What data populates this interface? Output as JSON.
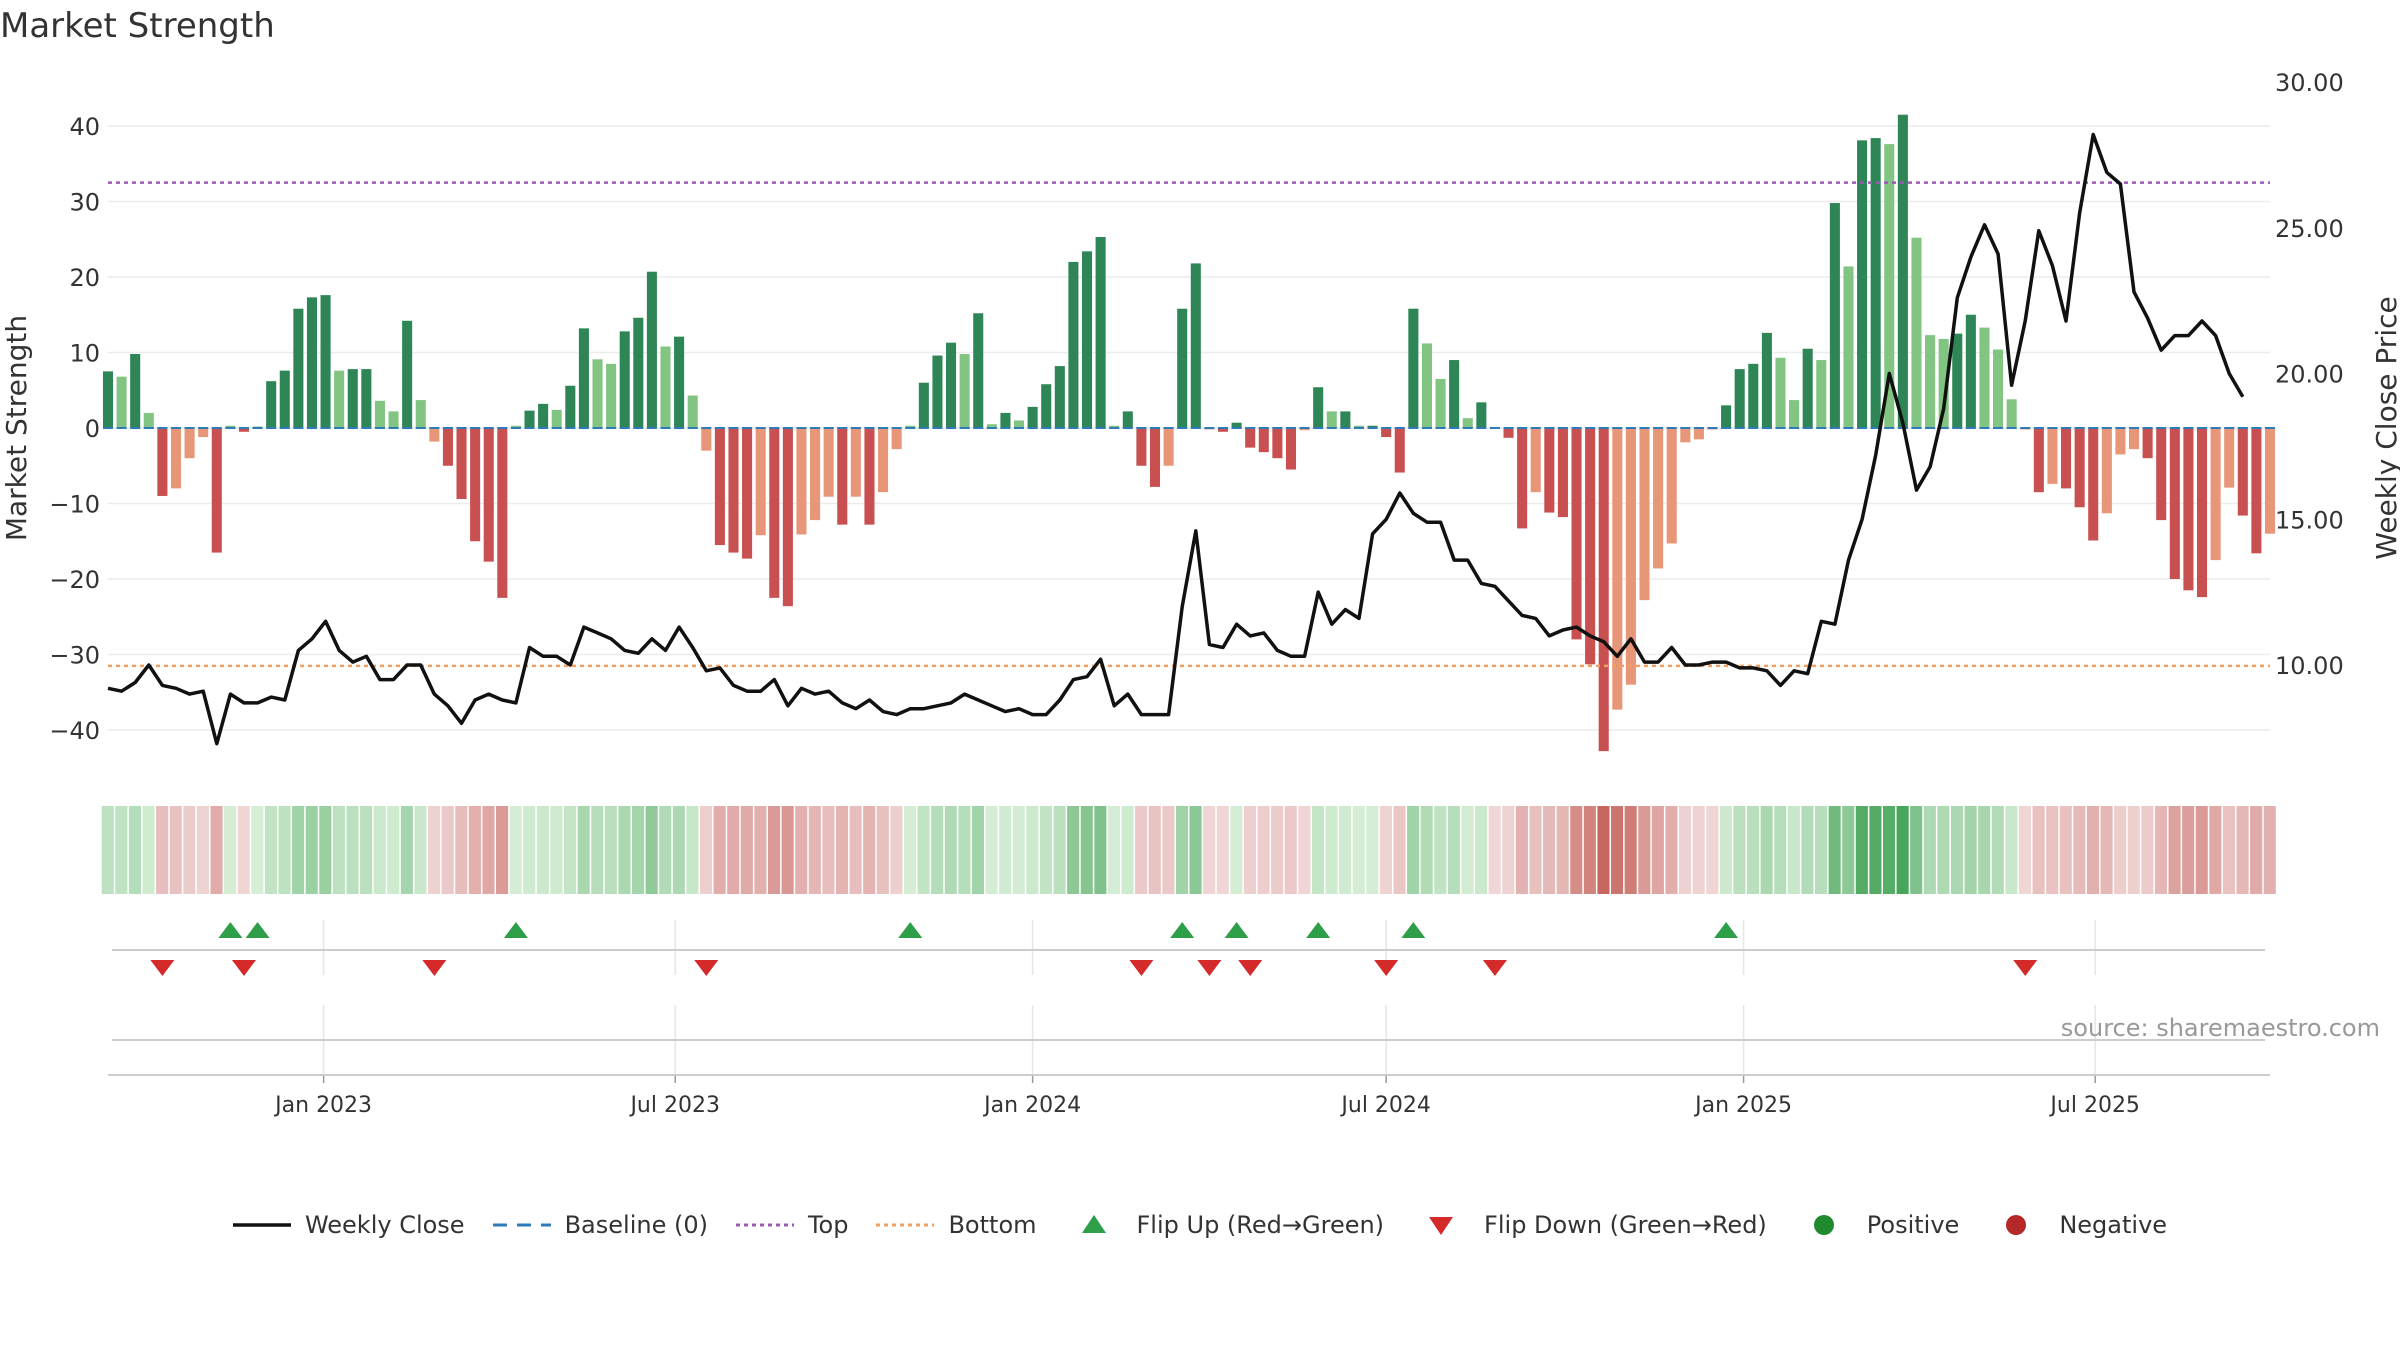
{
  "title": "Market Strength",
  "source_text": "source: sharemaestro.com",
  "legend": [
    {
      "label": "Weekly Close",
      "kind": "line",
      "color": "#111111"
    },
    {
      "label": "Baseline (0)",
      "kind": "dash",
      "color": "#2f7ab8"
    },
    {
      "label": "Top",
      "kind": "dot",
      "color": "#9b59b6"
    },
    {
      "label": "Bottom",
      "kind": "dot",
      "color": "#f0a060"
    },
    {
      "label": "Flip Up (Red→Green)",
      "kind": "tri-up",
      "color": "#2e9e48"
    },
    {
      "label": "Flip Down (Green→Red)",
      "kind": "tri-down",
      "color": "#d42a2a"
    },
    {
      "label": "Positive",
      "kind": "circle",
      "color": "#1f8a2e"
    },
    {
      "label": "Negative",
      "kind": "circle",
      "color": "#b52828"
    }
  ],
  "chart_data": {
    "type": "bar",
    "title": "Market Strength",
    "ylabel": "Market Strength",
    "y2label": "Weekly Close Price",
    "ylim": [
      -46,
      47
    ],
    "y2lim": [
      6.5,
      30.0
    ],
    "yticks": [
      "40",
      "30",
      "20",
      "10",
      "0",
      "−10",
      "−20",
      "−30",
      "−40"
    ],
    "y2ticks": [
      "30.00",
      "25.00",
      "20.00",
      "15.00",
      "10.00"
    ],
    "x_start": "2022-09-12",
    "x_step_days": 7,
    "xticks": [
      {
        "date": "2023-01-01",
        "label": "Jan 2023"
      },
      {
        "date": "2023-07-01",
        "label": "Jul 2023"
      },
      {
        "date": "2024-01-01",
        "label": "Jan 2024"
      },
      {
        "date": "2024-07-01",
        "label": "Jul 2024"
      },
      {
        "date": "2025-01-01",
        "label": "Jan 2025"
      },
      {
        "date": "2025-07-01",
        "label": "Jul 2025"
      }
    ],
    "top_level": 32.5,
    "bottom_level": -31.5,
    "baseline": 0,
    "strength": [
      7.5,
      6.8,
      9.8,
      2.0,
      -9.0,
      -8.0,
      -4.0,
      -1.2,
      -16.5,
      0.3,
      -0.5,
      0.2,
      6.2,
      7.6,
      15.8,
      17.3,
      17.6,
      7.6,
      7.8,
      7.8,
      3.6,
      2.2,
      14.2,
      3.7,
      -1.8,
      -5.0,
      -9.4,
      -15.0,
      -17.7,
      -22.5,
      0.3,
      2.3,
      3.2,
      2.4,
      5.6,
      13.2,
      9.1,
      8.5,
      12.8,
      14.6,
      20.7,
      10.8,
      12.1,
      4.3,
      -3.0,
      -15.5,
      -16.5,
      -17.3,
      -14.2,
      -22.5,
      -23.6,
      -14.1,
      -12.2,
      -9.1,
      -12.8,
      -9.1,
      -12.8,
      -8.5,
      -2.8,
      0.3,
      6.0,
      9.6,
      11.3,
      9.8,
      15.2,
      0.5,
      2.0,
      1.0,
      2.8,
      5.8,
      8.2,
      22.0,
      23.4,
      25.3,
      0.3,
      2.2,
      -5.0,
      -7.8,
      -5.0,
      15.8,
      21.8,
      -0.2,
      -0.5,
      0.7,
      -2.6,
      -3.2,
      -4.0,
      -5.5,
      -0.3,
      5.4,
      2.2,
      2.2,
      0.3,
      0.3,
      -1.2,
      -5.9,
      15.8,
      11.2,
      6.5,
      9.0,
      1.3,
      3.4,
      -0.1,
      -1.3,
      -13.3,
      -8.5,
      -11.2,
      -11.8,
      -28.0,
      -31.3,
      -42.8,
      -37.3,
      -34.0,
      -22.8,
      -18.6,
      -15.3,
      -1.9,
      -1.5,
      -0.2,
      3.0,
      7.8,
      8.5,
      12.6,
      9.3,
      3.7,
      10.5,
      9.0,
      29.8,
      21.4,
      38.1,
      38.4,
      37.6,
      41.5,
      25.2,
      12.3,
      11.8,
      12.5,
      15.0,
      13.3,
      10.4,
      3.8,
      -0.2,
      -8.5,
      -7.4,
      -8.0,
      -10.5,
      -14.9,
      -11.3,
      -3.5,
      -2.8,
      -4.0,
      -12.2,
      -20.0,
      -21.5,
      -22.4,
      -17.5,
      -7.9,
      -11.6,
      -16.6,
      -14.0
    ],
    "weekly_close": [
      9.2,
      9.1,
      9.4,
      10.0,
      9.3,
      9.2,
      9.0,
      9.1,
      7.3,
      9.0,
      8.7,
      8.7,
      8.9,
      8.8,
      10.5,
      10.9,
      11.5,
      10.5,
      10.1,
      10.3,
      9.5,
      9.5,
      10.0,
      10.0,
      9.0,
      8.6,
      8.0,
      8.8,
      9.0,
      8.8,
      8.7,
      10.6,
      10.3,
      10.3,
      10.0,
      11.3,
      11.1,
      10.9,
      10.5,
      10.4,
      10.9,
      10.5,
      11.3,
      10.6,
      9.8,
      9.9,
      9.3,
      9.1,
      9.1,
      9.5,
      8.6,
      9.2,
      9.0,
      9.1,
      8.7,
      8.5,
      8.8,
      8.4,
      8.3,
      8.5,
      8.5,
      8.6,
      8.7,
      9.0,
      8.8,
      8.6,
      8.4,
      8.5,
      8.3,
      8.3,
      8.8,
      9.5,
      9.6,
      10.2,
      8.6,
      9.0,
      8.3,
      8.3,
      8.3,
      12.0,
      14.6,
      10.7,
      10.6,
      11.4,
      11.0,
      11.1,
      10.5,
      10.3,
      10.3,
      12.5,
      11.4,
      11.9,
      11.6,
      14.5,
      15.0,
      15.9,
      15.2,
      14.9,
      14.9,
      13.6,
      13.6,
      12.8,
      12.7,
      12.2,
      11.7,
      11.6,
      11.0,
      11.2,
      11.3,
      11.0,
      10.8,
      10.3,
      10.9,
      10.1,
      10.1,
      10.6,
      10.0,
      10.0,
      10.1,
      10.1,
      9.9,
      9.9,
      9.8,
      9.3,
      9.8,
      9.7,
      11.5,
      11.4,
      13.6,
      15.0,
      17.2,
      20.0,
      18.3,
      16.0,
      16.8,
      18.8,
      22.6,
      24.0,
      25.1,
      24.1,
      19.6,
      21.8,
      24.9,
      23.7,
      21.8,
      25.5,
      28.2,
      26.9,
      26.5,
      22.8,
      21.9,
      20.8,
      21.3,
      21.3,
      21.8,
      21.3,
      20.0,
      19.2
    ]
  }
}
